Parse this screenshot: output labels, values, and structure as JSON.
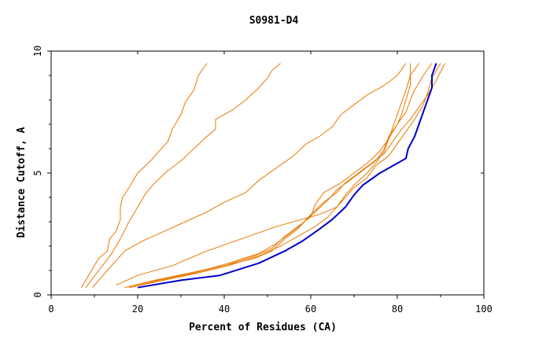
{
  "chart_data": {
    "type": "line",
    "title": "S0981-D4",
    "xlabel": "Percent of Residues (CA)",
    "ylabel": "Distance Cutoff, A",
    "xlim": [
      0,
      100
    ],
    "ylim": [
      0,
      10
    ],
    "xticks": [
      "0",
      "20",
      "40",
      "60",
      "80",
      "100"
    ],
    "yticks": [
      "0",
      "5",
      "10"
    ],
    "grid": false,
    "legend": "none",
    "colors": {
      "highlight": "#0000cc",
      "others": "#e87800",
      "axis": "#000000"
    },
    "series": [
      {
        "color": "#e87800",
        "points": [
          [
            7,
            0.3
          ],
          [
            9,
            0.9
          ],
          [
            11,
            1.5
          ],
          [
            13,
            1.8
          ],
          [
            13.5,
            2.3
          ],
          [
            15,
            2.6
          ],
          [
            16,
            3.1
          ],
          [
            16,
            3.6
          ],
          [
            16.5,
            4
          ],
          [
            18,
            4.4
          ],
          [
            20,
            5
          ],
          [
            23,
            5.5
          ],
          [
            25,
            5.9
          ],
          [
            27,
            6.3
          ],
          [
            28,
            6.8
          ],
          [
            30,
            7.4
          ],
          [
            31,
            7.9
          ],
          [
            33,
            8.4
          ],
          [
            34,
            9
          ],
          [
            36,
            9.5
          ]
        ]
      },
      {
        "color": "#e87800",
        "points": [
          [
            8,
            0.3
          ],
          [
            11,
            1
          ],
          [
            14,
            1.7
          ],
          [
            16,
            2.3
          ],
          [
            18,
            3
          ],
          [
            20,
            3.6
          ],
          [
            22,
            4.2
          ],
          [
            24,
            4.6
          ],
          [
            27,
            5.1
          ],
          [
            30,
            5.5
          ],
          [
            33,
            6
          ],
          [
            36,
            6.5
          ],
          [
            38,
            6.8
          ],
          [
            38,
            7.2
          ],
          [
            42,
            7.6
          ],
          [
            45,
            8
          ],
          [
            48,
            8.5
          ],
          [
            50,
            8.9
          ],
          [
            51,
            9.2
          ],
          [
            53,
            9.5
          ]
        ]
      },
      {
        "color": "#e87800",
        "points": [
          [
            9.5,
            0.3
          ],
          [
            13,
            1
          ],
          [
            17,
            1.8
          ],
          [
            21,
            2.2
          ],
          [
            26,
            2.6
          ],
          [
            31,
            3
          ],
          [
            36,
            3.4
          ],
          [
            40,
            3.8
          ],
          [
            45,
            4.2
          ],
          [
            48,
            4.7
          ],
          [
            52,
            5.2
          ],
          [
            56,
            5.7
          ],
          [
            59,
            6.2
          ],
          [
            62,
            6.5
          ],
          [
            65,
            6.9
          ],
          [
            67,
            7.4
          ],
          [
            70,
            7.8
          ],
          [
            73,
            8.2
          ],
          [
            77,
            8.6
          ],
          [
            80,
            9
          ],
          [
            82,
            9.5
          ]
        ]
      },
      {
        "color": "#e87800",
        "points": [
          [
            17,
            0.3
          ],
          [
            24,
            0.6
          ],
          [
            33,
            0.9
          ],
          [
            40,
            1.2
          ],
          [
            47,
            1.6
          ],
          [
            51,
            1.9
          ],
          [
            54,
            2.4
          ],
          [
            57,
            2.8
          ],
          [
            60,
            3.2
          ],
          [
            61,
            3.7
          ],
          [
            63,
            4.2
          ],
          [
            67,
            4.6
          ],
          [
            70,
            5
          ],
          [
            73,
            5.4
          ],
          [
            76,
            5.9
          ],
          [
            78,
            6.4
          ],
          [
            80,
            7
          ],
          [
            82,
            7.5
          ],
          [
            83,
            8
          ],
          [
            84,
            8.4
          ],
          [
            86,
            9
          ],
          [
            88,
            9.5
          ]
        ]
      },
      {
        "color": "#e87800",
        "points": [
          [
            18,
            0.3
          ],
          [
            25,
            0.6
          ],
          [
            33,
            0.9
          ],
          [
            41,
            1.3
          ],
          [
            48,
            1.7
          ],
          [
            52,
            2.1
          ],
          [
            55,
            2.5
          ],
          [
            58,
            2.9
          ],
          [
            60,
            3.3
          ],
          [
            63,
            3.8
          ],
          [
            66,
            4.2
          ],
          [
            68,
            4.6
          ],
          [
            71,
            5
          ],
          [
            74,
            5.4
          ],
          [
            77,
            5.8
          ],
          [
            79,
            6.3
          ],
          [
            81,
            6.8
          ],
          [
            83,
            7.2
          ],
          [
            85,
            7.7
          ],
          [
            87,
            8.2
          ],
          [
            89,
            8.8
          ],
          [
            91,
            9.5
          ]
        ]
      },
      {
        "color": "#e87800",
        "points": [
          [
            17,
            0.3
          ],
          [
            24,
            0.6
          ],
          [
            32,
            0.9
          ],
          [
            40,
            1.2
          ],
          [
            47,
            1.5
          ],
          [
            51,
            1.8
          ],
          [
            54,
            2.3
          ],
          [
            57,
            2.7
          ],
          [
            59,
            3.1
          ],
          [
            61,
            3.4
          ],
          [
            64,
            3.9
          ],
          [
            66,
            4.3
          ],
          [
            69,
            4.7
          ],
          [
            72,
            5.1
          ],
          [
            75,
            5.5
          ],
          [
            77,
            6
          ],
          [
            78,
            6.5
          ],
          [
            80,
            7
          ],
          [
            81,
            7.4
          ],
          [
            82,
            8
          ],
          [
            83,
            8.6
          ],
          [
            83,
            9.5
          ]
        ]
      },
      {
        "color": "#e87800",
        "points": [
          [
            18,
            0.3
          ],
          [
            26,
            0.6
          ],
          [
            34,
            0.9
          ],
          [
            41,
            1.2
          ],
          [
            48,
            1.6
          ],
          [
            53,
            2
          ],
          [
            57,
            2.4
          ],
          [
            61,
            2.8
          ],
          [
            64,
            3.2
          ],
          [
            66,
            3.6
          ],
          [
            68,
            4
          ],
          [
            70,
            4.4
          ],
          [
            73,
            4.8
          ],
          [
            75,
            5.3
          ],
          [
            78,
            5.7
          ],
          [
            80,
            6.2
          ],
          [
            82,
            6.7
          ],
          [
            84,
            7.2
          ],
          [
            86,
            7.8
          ],
          [
            87,
            8.3
          ],
          [
            88,
            8.9
          ],
          [
            90,
            9.5
          ]
        ]
      },
      {
        "color": "#e87800",
        "points": [
          [
            15,
            0.4
          ],
          [
            20,
            0.8
          ],
          [
            28,
            1.2
          ],
          [
            36,
            1.8
          ],
          [
            44,
            2.3
          ],
          [
            52,
            2.8
          ],
          [
            58,
            3.1
          ],
          [
            62,
            3.3
          ],
          [
            66,
            3.6
          ],
          [
            68,
            4.1
          ],
          [
            70,
            4.5
          ],
          [
            73,
            5
          ],
          [
            75,
            5.4
          ],
          [
            77,
            5.9
          ],
          [
            78,
            6.4
          ],
          [
            79,
            6.9
          ],
          [
            80,
            7.4
          ],
          [
            81,
            7.9
          ],
          [
            82,
            8.4
          ],
          [
            83,
            9
          ],
          [
            85,
            9.5
          ]
        ]
      },
      {
        "color": "#0000cc",
        "points": [
          [
            20,
            0.3
          ],
          [
            30,
            0.6
          ],
          [
            39,
            0.8
          ],
          [
            48,
            1.3
          ],
          [
            54,
            1.8
          ],
          [
            58,
            2.2
          ],
          [
            62,
            2.7
          ],
          [
            65,
            3.1
          ],
          [
            68,
            3.6
          ],
          [
            70,
            4.1
          ],
          [
            72,
            4.5
          ],
          [
            76,
            5
          ],
          [
            80,
            5.4
          ],
          [
            82,
            5.6
          ],
          [
            82.5,
            6
          ],
          [
            84,
            6.5
          ],
          [
            85,
            7
          ],
          [
            86,
            7.5
          ],
          [
            87,
            8
          ],
          [
            88,
            8.5
          ],
          [
            88,
            9
          ],
          [
            89,
            9.5
          ]
        ]
      }
    ]
  }
}
